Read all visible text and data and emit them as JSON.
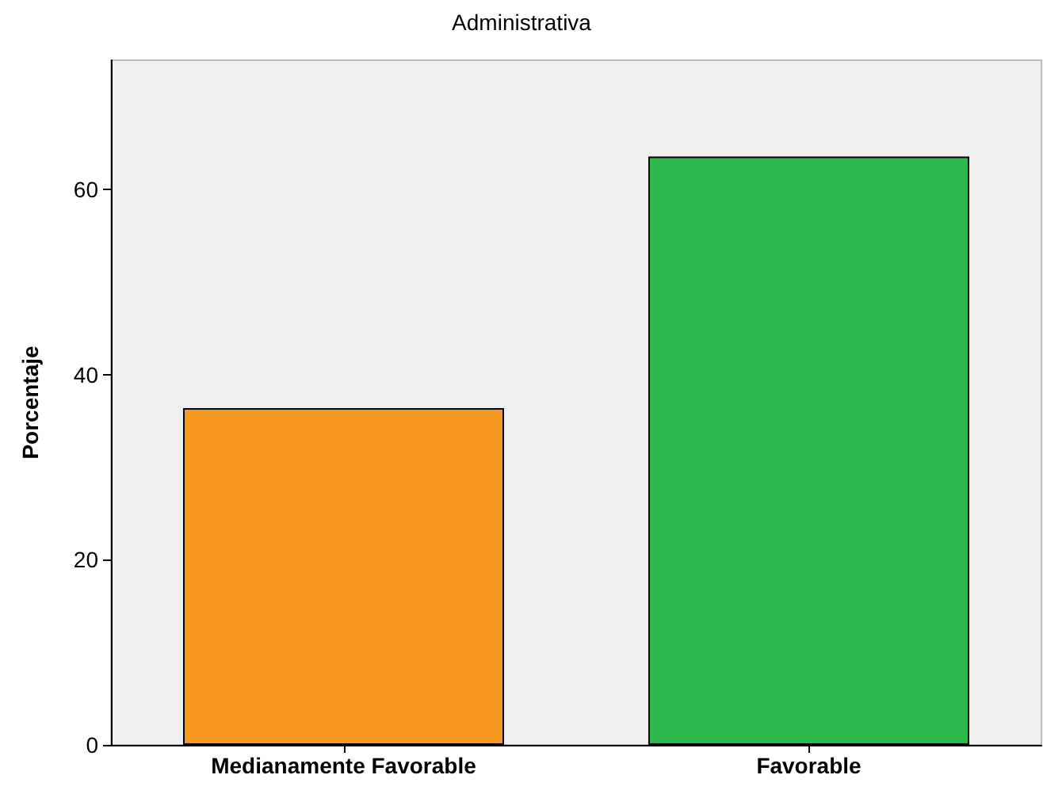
{
  "chart_data": {
    "type": "bar",
    "title": "Administrativa",
    "ylabel": "Porcentaje",
    "categories": [
      "Medianamente Favorable",
      "Favorable"
    ],
    "values": [
      36.4,
      63.6
    ],
    "colors": [
      "#f7991f",
      "#2db84b"
    ],
    "ylim": [
      0,
      74
    ],
    "yticks": [
      0,
      20,
      40,
      60
    ],
    "grid": false
  }
}
